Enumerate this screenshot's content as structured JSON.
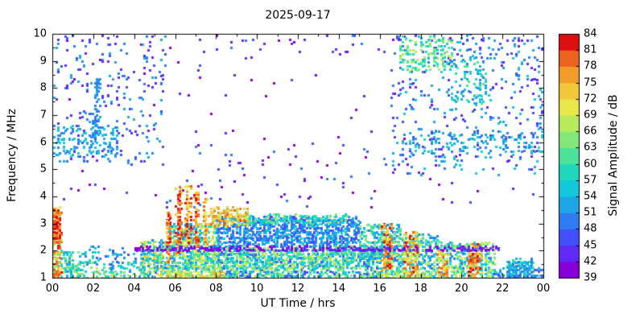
{
  "page": {
    "background": "#ffffff",
    "frame_color": "#000000"
  },
  "chart_data": {
    "type": "heatmap",
    "title": "2025-09-17",
    "xlabel": "UT Time / hrs",
    "ylabel": "Frequency / MHz",
    "x_range": [
      0,
      24
    ],
    "y_range": [
      1,
      10
    ],
    "x_tick_values": [
      0,
      2,
      4,
      6,
      8,
      10,
      12,
      14,
      16,
      18,
      20,
      22,
      24
    ],
    "x_tick_labels": [
      "00",
      "02",
      "04",
      "06",
      "08",
      "10",
      "12",
      "14",
      "16",
      "18",
      "20",
      "22",
      "00"
    ],
    "y_tick_values": [
      1,
      2,
      3,
      4,
      5,
      6,
      7,
      8,
      9,
      10
    ],
    "grid": false,
    "legend": "colorbar-right",
    "colorbar": {
      "label": "Signal Amplitude / dB",
      "min": 39,
      "max": 84,
      "step": 3,
      "tick_values": [
        39,
        42,
        45,
        48,
        51,
        54,
        57,
        60,
        63,
        66,
        69,
        72,
        75,
        78,
        81,
        84
      ],
      "band_colors": [
        "#8800d8",
        "#6029f8",
        "#4150fa",
        "#2e7bf2",
        "#1ea5e8",
        "#12c8da",
        "#1fd8bc",
        "#4ce29a",
        "#84e878",
        "#b8ea5e",
        "#e8e84a",
        "#f2c83a",
        "#f29c2c",
        "#ea6420",
        "#dc1010"
      ]
    },
    "seed": 20250917,
    "point_size": 3,
    "bin_hours": 0.09,
    "bin_mhz": 0.05,
    "regions": [
      {
        "name": "background-sparse-upper",
        "t": [
          0,
          24
        ],
        "f": [
          3.6,
          10
        ],
        "amp": [
          39,
          46
        ],
        "n": 130
      },
      {
        "name": "top-edge-sparse",
        "t": [
          0,
          24
        ],
        "f": [
          9.3,
          10
        ],
        "amp": [
          39,
          51
        ],
        "n": 50
      },
      {
        "name": "upper-left-scatter",
        "t": [
          0,
          5.5
        ],
        "f": [
          5.2,
          10
        ],
        "amp": [
          42,
          54
        ],
        "n": 220
      },
      {
        "name": "upper-left-cyan-band",
        "t": [
          0,
          3.2
        ],
        "f": [
          5.5,
          6.6
        ],
        "amp": [
          48,
          57
        ],
        "n": 140
      },
      {
        "name": "vertical-streak-02ut",
        "t": [
          2.0,
          2.25
        ],
        "f": [
          6.3,
          8.4
        ],
        "amp": [
          48,
          54
        ],
        "n": 50
      },
      {
        "name": "upper-right-scatter",
        "t": [
          16.5,
          24
        ],
        "f": [
          4.8,
          10
        ],
        "amp": [
          42,
          57
        ],
        "n": 380
      },
      {
        "name": "right-6mhz-band",
        "t": [
          17,
          24
        ],
        "f": [
          5.6,
          6.4
        ],
        "amp": [
          48,
          60
        ],
        "n": 140
      },
      {
        "name": "upper-right-green-patch",
        "t": [
          17,
          19.6
        ],
        "f": [
          8.6,
          9.9
        ],
        "amp": [
          54,
          69
        ],
        "n": 150
      },
      {
        "name": "upper-right-patch",
        "t": [
          19.5,
          21.2
        ],
        "f": [
          7.4,
          9.2
        ],
        "amp": [
          48,
          63
        ],
        "n": 100
      },
      {
        "name": "mid-day-sparse",
        "t": [
          5,
          16.5
        ],
        "f": [
          3.6,
          6
        ],
        "amp": [
          39,
          51
        ],
        "n": 60
      },
      {
        "name": "early-low-band",
        "t": [
          0.4,
          4.6
        ],
        "f": [
          1,
          1.6
        ],
        "amp": [
          48,
          69
        ],
        "n": 160
      },
      {
        "name": "post-midnight-dots",
        "t": [
          0.4,
          1.6
        ],
        "f": [
          1,
          2
        ],
        "amp": [
          51,
          66
        ],
        "n": 80
      },
      {
        "name": "early-low-sparse",
        "t": [
          1.5,
          4.5
        ],
        "f": [
          1.5,
          2.2
        ],
        "amp": [
          45,
          60
        ],
        "n": 50
      },
      {
        "name": "dawn-rise",
        "t": [
          4.3,
          5.6
        ],
        "f": [
          1,
          2.4
        ],
        "amp": [
          48,
          75
        ],
        "n": 220
      },
      {
        "name": "morning-band",
        "t": [
          5.6,
          8.2
        ],
        "f": [
          1,
          3
        ],
        "amp": [
          48,
          72
        ],
        "n": 650
      },
      {
        "name": "day-low-band",
        "t": [
          8,
          16
        ],
        "f": [
          1,
          2.2
        ],
        "amp": [
          45,
          69
        ],
        "n": 1100
      },
      {
        "name": "day-mid-green",
        "t": [
          5,
          16.5
        ],
        "f": [
          1.3,
          2
        ],
        "amp": [
          54,
          69
        ],
        "n": 350
      },
      {
        "name": "bottom-edge-warm-am",
        "t": [
          5.5,
          8.5
        ],
        "f": [
          1,
          1.25
        ],
        "amp": [
          63,
          78
        ],
        "n": 90
      },
      {
        "name": "day-arc-core",
        "t": [
          8,
          15
        ],
        "f": [
          2.2,
          3.25
        ],
        "amp": [
          45,
          57
        ],
        "n": 950
      },
      {
        "name": "day-arc-top-edge",
        "t": [
          9,
          14.5
        ],
        "f": [
          3,
          3.35
        ],
        "amp": [
          54,
          66
        ],
        "n": 130
      },
      {
        "name": "morning-orange-crest",
        "t": [
          7.6,
          9.6
        ],
        "f": [
          2.9,
          3.6
        ],
        "amp": [
          66,
          81
        ],
        "n": 140
      },
      {
        "name": "morning-spike-1",
        "t": [
          5.55,
          5.75
        ],
        "f": [
          1.6,
          3.4
        ],
        "amp": [
          69,
          84
        ],
        "n": 60
      },
      {
        "name": "morning-spike-2",
        "t": [
          6.05,
          6.3
        ],
        "f": [
          1.8,
          4.35
        ],
        "amp": [
          72,
          84
        ],
        "n": 80
      },
      {
        "name": "morning-spike-3",
        "t": [
          6.5,
          6.75
        ],
        "f": [
          2,
          4.5
        ],
        "amp": [
          69,
          84
        ],
        "n": 70
      },
      {
        "name": "morning-spike-4",
        "t": [
          6.95,
          7.15
        ],
        "f": [
          2,
          4.15
        ],
        "amp": [
          72,
          84
        ],
        "n": 60
      },
      {
        "name": "morning-spike-5",
        "t": [
          7.35,
          7.55
        ],
        "f": [
          2.2,
          3.9
        ],
        "amp": [
          69,
          81
        ],
        "n": 50
      },
      {
        "name": "afternoon-decline",
        "t": [
          15,
          17
        ],
        "f": [
          1.6,
          3
        ],
        "amp": [
          48,
          66
        ],
        "n": 280
      },
      {
        "name": "dusk-band",
        "t": [
          16,
          19
        ],
        "f": [
          1,
          2.6
        ],
        "amp": [
          48,
          69
        ],
        "n": 450
      },
      {
        "name": "bottom-edge-warm-pm",
        "t": [
          15.8,
          18.8
        ],
        "f": [
          1,
          1.2
        ],
        "amp": [
          60,
          75
        ],
        "n": 70
      },
      {
        "name": "dusk-red-blob-1",
        "t": [
          16.1,
          16.6
        ],
        "f": [
          1.3,
          3
        ],
        "amp": [
          69,
          84
        ],
        "n": 100
      },
      {
        "name": "dusk-red-blob-2",
        "t": [
          17.15,
          17.85
        ],
        "f": [
          1.1,
          2.7
        ],
        "amp": [
          66,
          84
        ],
        "n": 130
      },
      {
        "name": "evening-band",
        "t": [
          19,
          21.6
        ],
        "f": [
          1,
          2.3
        ],
        "amp": [
          48,
          72
        ],
        "n": 350
      },
      {
        "name": "evening-red-1",
        "t": [
          18.85,
          19.3
        ],
        "f": [
          1,
          2
        ],
        "amp": [
          66,
          81
        ],
        "n": 60
      },
      {
        "name": "evening-red-2",
        "t": [
          20.3,
          20.95
        ],
        "f": [
          1,
          2.3
        ],
        "amp": [
          69,
          84
        ],
        "n": 100
      },
      {
        "name": "late-low-bump",
        "t": [
          22.2,
          23.5
        ],
        "f": [
          1,
          1.7
        ],
        "amp": [
          48,
          63
        ],
        "n": 130
      },
      {
        "name": "late-sparse",
        "t": [
          21.5,
          24
        ],
        "f": [
          1,
          1.4
        ],
        "amp": [
          45,
          57
        ],
        "n": 70
      },
      {
        "name": "midnight-red-column",
        "t": [
          0,
          0.45
        ],
        "f": [
          1,
          3.6
        ],
        "amp": [
          63,
          84
        ],
        "n": 150
      },
      {
        "name": "midnight-red-core",
        "t": [
          0.05,
          0.35
        ],
        "f": [
          2.3,
          3.4
        ],
        "amp": [
          75,
          84
        ],
        "n": 80
      },
      {
        "name": "2mhz-line",
        "t": [
          4,
          21.8
        ],
        "f": [
          2.0,
          2.15
        ],
        "amp": [
          39,
          46
        ],
        "n": 300
      }
    ]
  }
}
